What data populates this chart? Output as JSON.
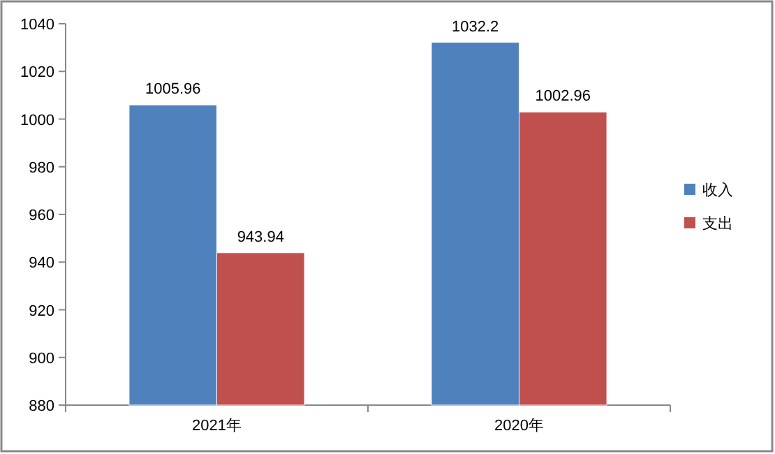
{
  "chart_data": {
    "type": "bar",
    "categories": [
      "2021年",
      "2020年"
    ],
    "series": [
      {
        "name": "收入",
        "color": "#4f81bd",
        "values": [
          1005.96,
          1032.2
        ]
      },
      {
        "name": "支出",
        "color": "#c0504d",
        "values": [
          943.94,
          1002.96
        ]
      }
    ],
    "ylim": [
      880,
      1040
    ],
    "yticks": [
      880,
      900,
      920,
      940,
      960,
      980,
      1000,
      1020,
      1040
    ],
    "data_labels": true,
    "legend": "right"
  }
}
